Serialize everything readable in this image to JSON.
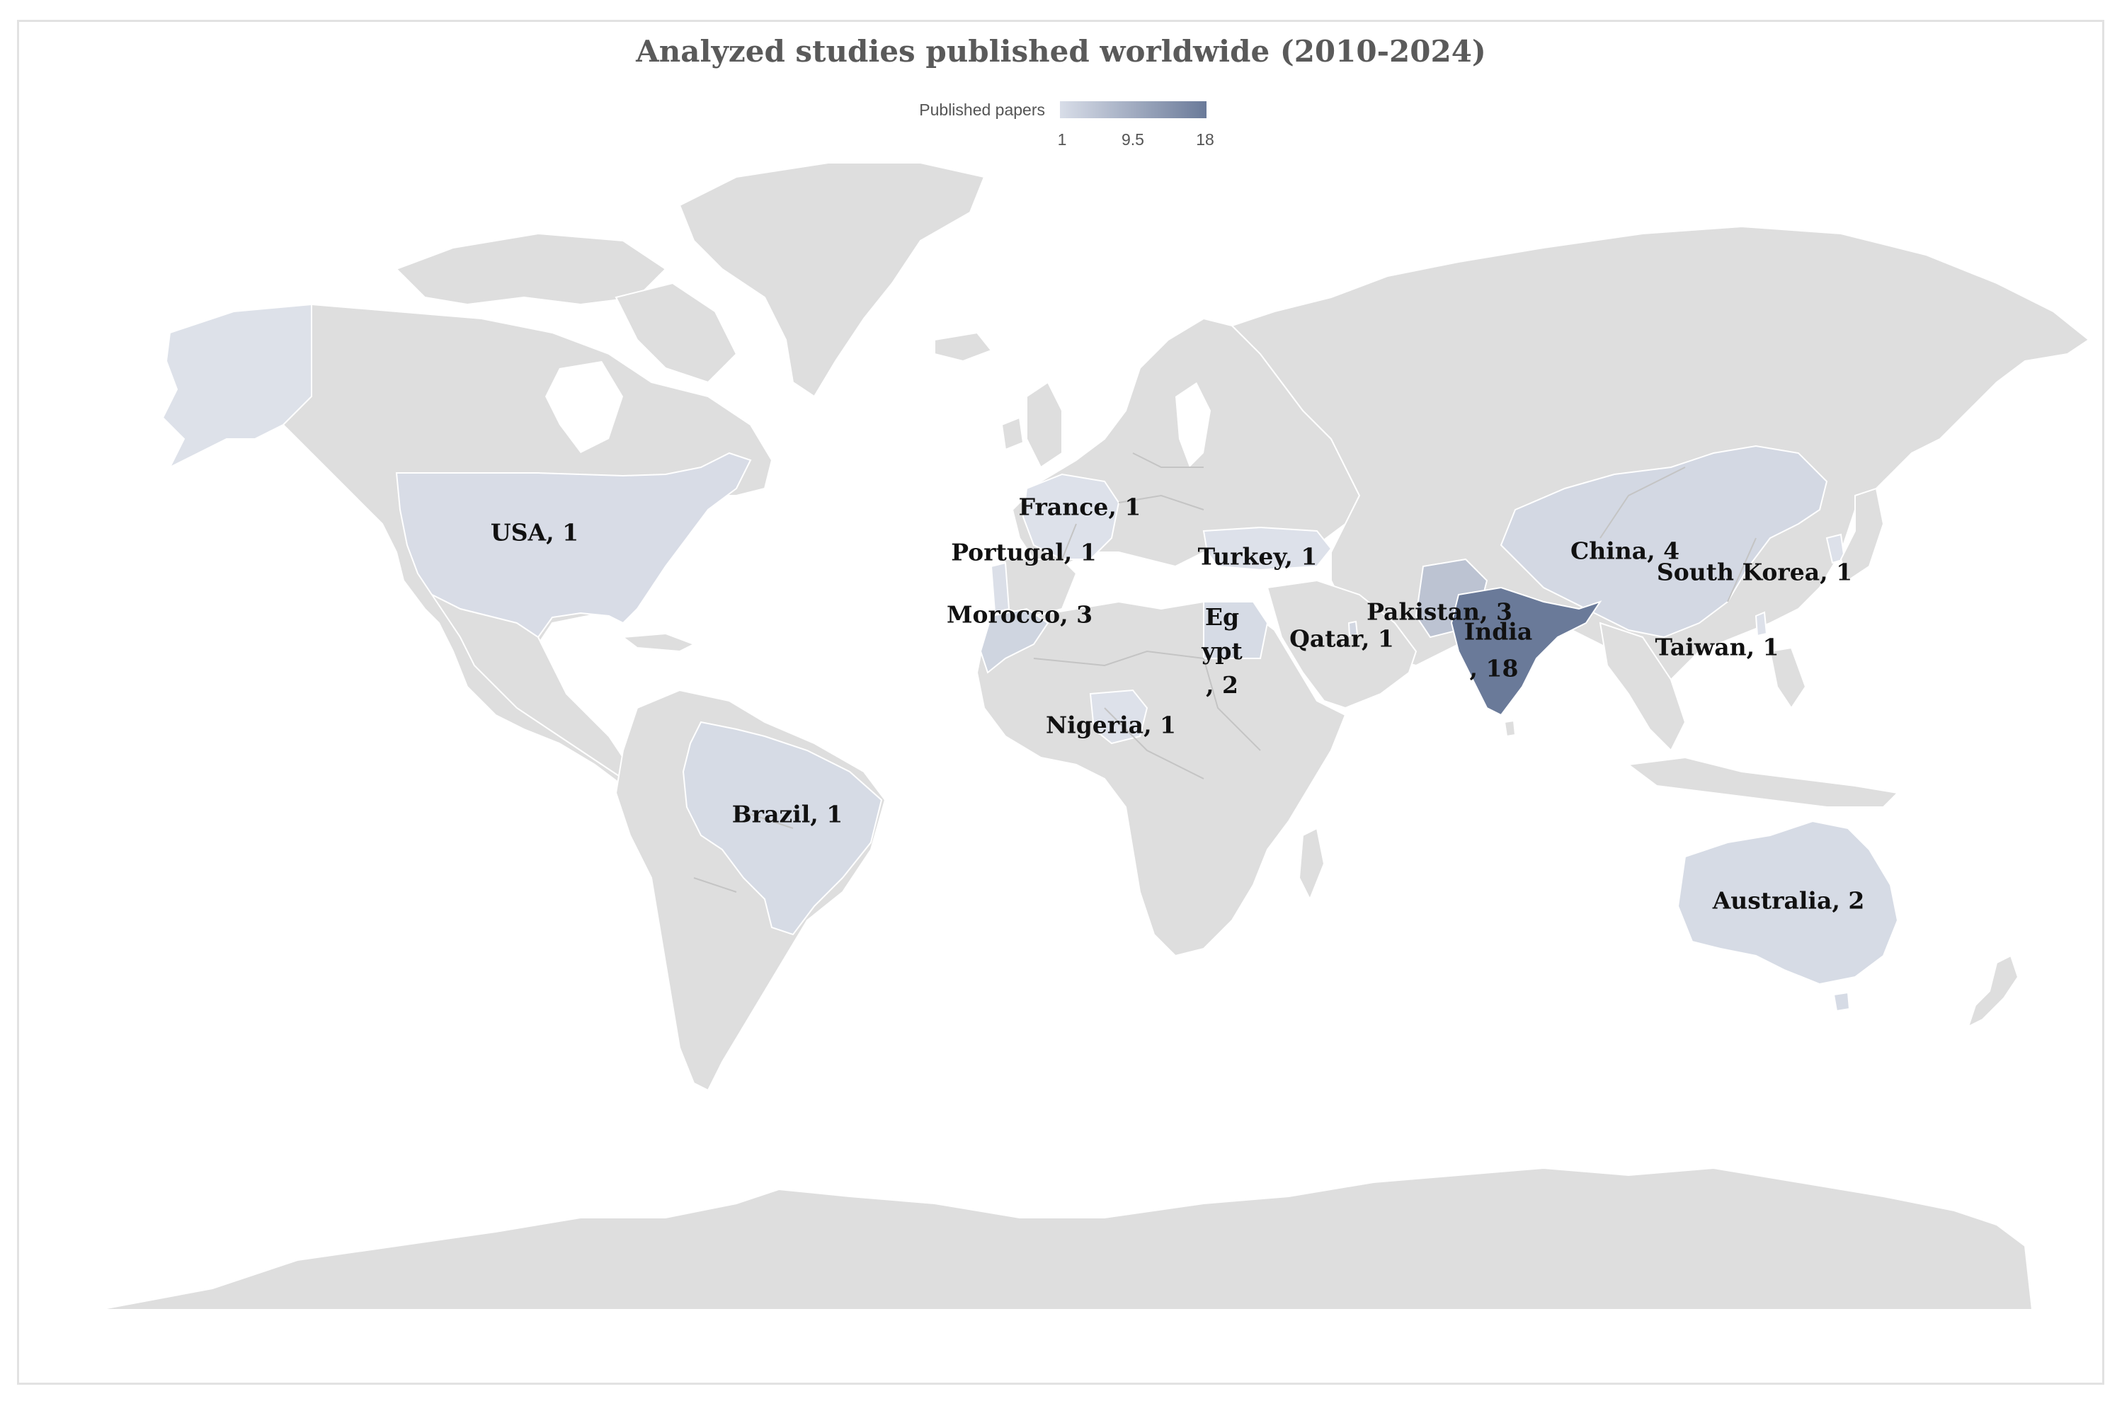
{
  "title": "Analyzed studies published worldwide (2010-2024)",
  "legend": {
    "label": "Published papers",
    "min_label": "1",
    "mid_label": "9.5",
    "max_label": "18",
    "min": 1,
    "max": 18,
    "color_low": "#d8dde8",
    "color_high": "#6a7a99"
  },
  "colors": {
    "land": "#dedede",
    "border": "#c4c4c4"
  },
  "countries": {
    "usa": {
      "label": "USA, 1",
      "value": 1
    },
    "france": {
      "label": "France, 1",
      "value": 1
    },
    "portugal": {
      "label": "Portugal, 1",
      "value": 1
    },
    "morocco": {
      "label": "Morocco, 3",
      "value": 3
    },
    "turkey": {
      "label": "Turkey, 1",
      "value": 1
    },
    "egypt": {
      "line1": "Eg",
      "line2": "ypt",
      "line3": ", 2",
      "value": 2
    },
    "qatar": {
      "label": "Qatar, 1",
      "value": 1
    },
    "pakistan": {
      "label": "Pakistan, 3",
      "value": 3
    },
    "india": {
      "line1": "India",
      "line2": ", 18",
      "value": 18
    },
    "china": {
      "label": "China, 4",
      "value": 4
    },
    "south_korea": {
      "label": "South Korea, 1",
      "value": 1
    },
    "taiwan": {
      "label": "Taiwan, 1",
      "value": 1
    },
    "nigeria": {
      "label": "Nigeria, 1",
      "value": 1
    },
    "brazil": {
      "label": "Brazil, 1",
      "value": 1
    },
    "australia": {
      "label": "Australia, 2",
      "value": 2
    }
  }
}
